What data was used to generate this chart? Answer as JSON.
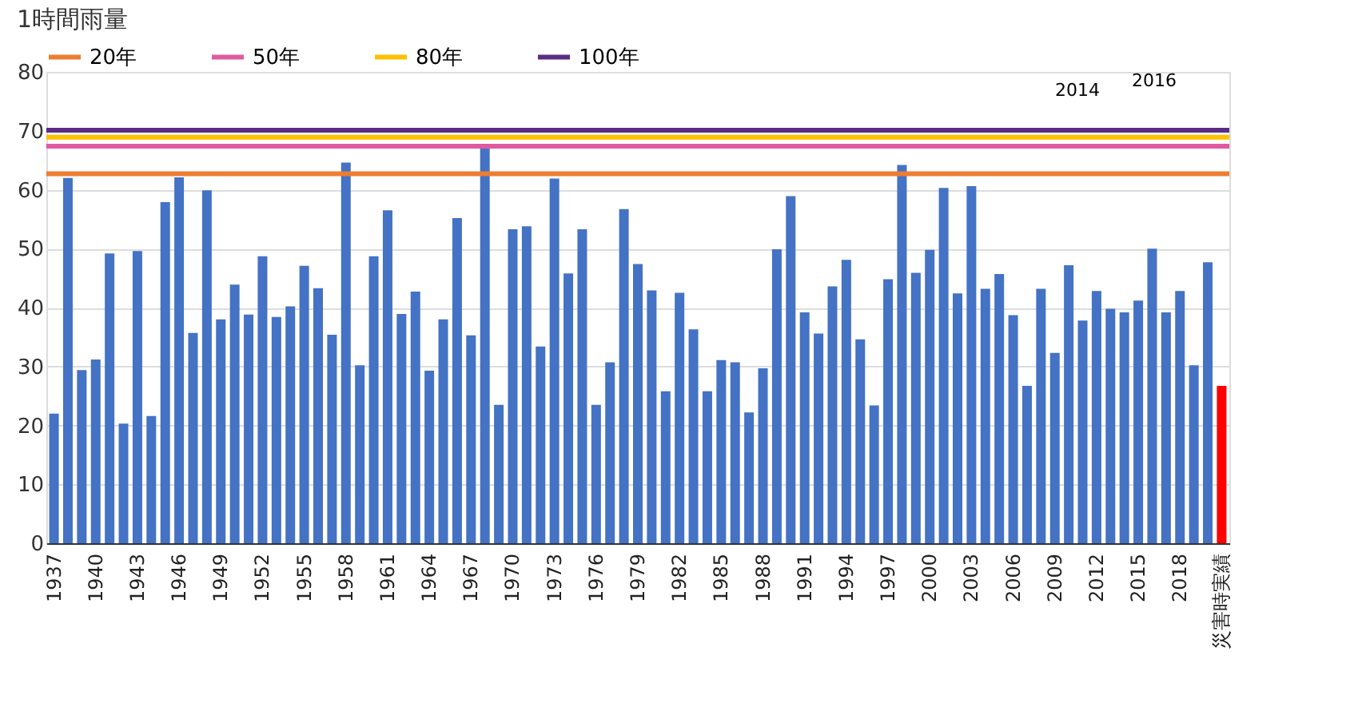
{
  "chart_data": {
    "type": "bar",
    "title": "1時間雨量",
    "categories": [
      "1937",
      null,
      null,
      "1940",
      null,
      null,
      "1943",
      null,
      null,
      "1946",
      null,
      null,
      "1949",
      null,
      null,
      "1952",
      null,
      null,
      "1955",
      null,
      null,
      "1958",
      null,
      null,
      "1961",
      null,
      null,
      "1964",
      null,
      null,
      "1967",
      null,
      null,
      "1970",
      null,
      null,
      "1973",
      null,
      null,
      "1976",
      null,
      null,
      "1979",
      null,
      null,
      "1982",
      null,
      null,
      "1985",
      null,
      null,
      "1988",
      null,
      null,
      "1991",
      null,
      null,
      "1994",
      null,
      null,
      "1997",
      null,
      null,
      "2000",
      null,
      null,
      "2003",
      null,
      null,
      "2006",
      null,
      null,
      "2009",
      null,
      null,
      "2012",
      null,
      null,
      "2015",
      null,
      null,
      "2018",
      null,
      null,
      "災害時実績"
    ],
    "values": [
      22,
      62,
      29.4,
      31.2,
      49.2,
      20.3,
      49.6,
      21.6,
      57.9,
      62.1,
      35.7,
      59.9,
      38,
      43.9,
      38.8,
      48.7,
      38.4,
      40.2,
      47.1,
      43.3,
      35.4,
      64.6,
      30.2,
      48.7,
      56.5,
      38.9,
      42.7,
      29.3,
      38,
      55.2,
      35.3,
      67.1,
      23.5,
      53.3,
      53.8,
      33.4,
      61.9,
      45.8,
      53.3,
      23.5,
      30.7,
      56.7,
      47.4,
      42.9,
      25.8,
      42.5,
      36.3,
      25.8,
      31.1,
      30.7,
      22.2,
      29.7,
      49.9,
      58.9,
      39.2,
      35.6,
      43.6,
      48.1,
      34.6,
      23.4,
      44.8,
      64.2,
      45.9,
      49.8,
      60.3,
      42.4,
      60.6,
      43.2,
      45.7,
      38.7,
      26.7,
      43.2,
      32.3,
      47.2,
      37.8,
      42.8,
      39.8,
      39.2,
      41.2,
      50,
      39.2,
      42.8,
      30.2,
      47.7,
      26.7
    ],
    "colors": [
      "#4472c4",
      "#4472c4",
      "#4472c4",
      "#4472c4",
      "#4472c4",
      "#4472c4",
      "#4472c4",
      "#4472c4",
      "#4472c4",
      "#4472c4",
      "#4472c4",
      "#4472c4",
      "#4472c4",
      "#4472c4",
      "#4472c4",
      "#4472c4",
      "#4472c4",
      "#4472c4",
      "#4472c4",
      "#4472c4",
      "#4472c4",
      "#4472c4",
      "#4472c4",
      "#4472c4",
      "#4472c4",
      "#4472c4",
      "#4472c4",
      "#4472c4",
      "#4472c4",
      "#4472c4",
      "#4472c4",
      "#4472c4",
      "#4472c4",
      "#4472c4",
      "#4472c4",
      "#4472c4",
      "#4472c4",
      "#4472c4",
      "#4472c4",
      "#4472c4",
      "#4472c4",
      "#4472c4",
      "#4472c4",
      "#4472c4",
      "#4472c4",
      "#4472c4",
      "#4472c4",
      "#4472c4",
      "#4472c4",
      "#4472c4",
      "#4472c4",
      "#4472c4",
      "#4472c4",
      "#4472c4",
      "#4472c4",
      "#4472c4",
      "#4472c4",
      "#4472c4",
      "#4472c4",
      "#4472c4",
      "#4472c4",
      "#4472c4",
      "#4472c4",
      "#4472c4",
      "#4472c4",
      "#4472c4",
      "#4472c4",
      "#4472c4",
      "#4472c4",
      "#4472c4",
      "#4472c4",
      "#4472c4",
      "#4472c4",
      "#4472c4",
      "#4472c4",
      "#4472c4",
      "#4472c4",
      "#4472c4",
      "#4472c4",
      "#4472c4",
      "#4472c4",
      "#4472c4",
      "#4472c4",
      "#4472c4",
      "#ff0000"
    ],
    "ylim": [
      0,
      80
    ],
    "yticks": [
      0,
      10,
      20,
      30,
      40,
      50,
      60,
      70,
      80
    ],
    "grid": "y",
    "legend": "top",
    "ref_lines": [
      {
        "axis": "y",
        "value": 62.7,
        "label": "20年",
        "color": "#ed7d31"
      },
      {
        "axis": "y",
        "value": 67.4,
        "label": "50年",
        "color": "#e05aa0"
      },
      {
        "axis": "y",
        "value": 68.9,
        "label": "80年",
        "color": "#ffc000"
      },
      {
        "axis": "y",
        "value": 70.1,
        "label": "100年",
        "color": "#5b2c83"
      }
    ],
    "annotations": [
      "2014",
      "2016"
    ]
  }
}
